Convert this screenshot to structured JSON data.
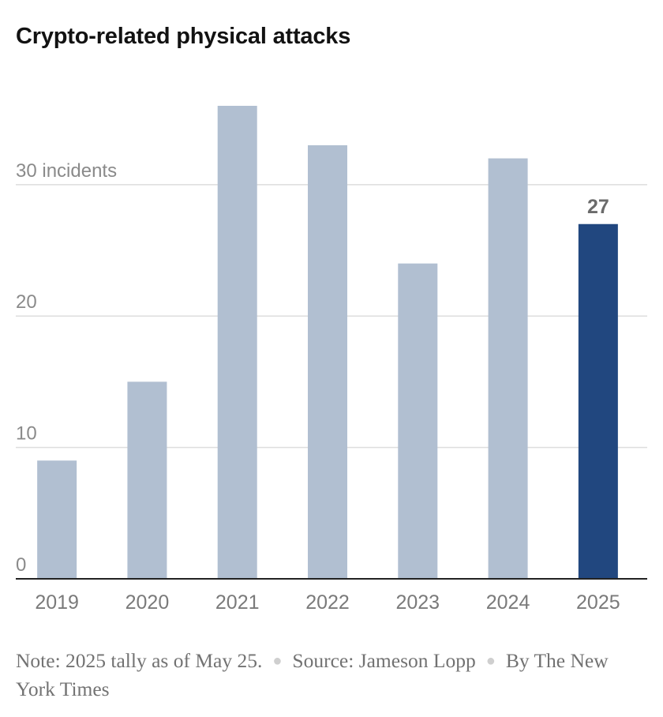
{
  "chart_data": {
    "type": "bar",
    "title": "Crypto-related physical attacks",
    "categories": [
      "2019",
      "2020",
      "2021",
      "2022",
      "2023",
      "2024",
      "2025"
    ],
    "values": [
      9,
      15,
      36,
      33,
      24,
      32,
      27
    ],
    "highlight": {
      "category": "2025",
      "label": "27"
    },
    "ylim": [
      0,
      36
    ],
    "yticks": [
      0,
      10,
      20,
      30
    ],
    "ytick_labels": [
      "0",
      "10",
      "20",
      "30 incidents"
    ],
    "xlabel": "",
    "ylabel": "",
    "grid": true,
    "colors": {
      "bar": "#b1bfd1",
      "highlight": "#21477f",
      "grid": "#dddddd",
      "axis": "#222222"
    }
  },
  "footer": {
    "note": "Note: 2025 tally as of May 25.",
    "source": "Source: Jameson Lopp",
    "byline": "By The New York Times"
  }
}
